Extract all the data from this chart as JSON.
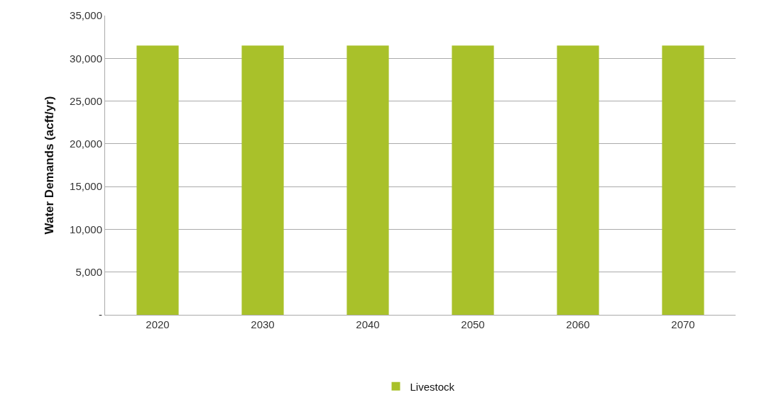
{
  "chart_data": {
    "type": "bar",
    "ylabel": "Water Demands (acft/yr)",
    "categories": [
      "2020",
      "2030",
      "2040",
      "2050",
      "2060",
      "2070"
    ],
    "series": [
      {
        "name": "Livestock",
        "color": "#a9c12a",
        "values": [
          31500,
          31500,
          31500,
          31500,
          31500,
          31500
        ]
      }
    ],
    "ylim": [
      0,
      35000
    ],
    "yticks": [
      {
        "value": 0,
        "label": "-"
      },
      {
        "value": 5000,
        "label": "5,000"
      },
      {
        "value": 10000,
        "label": "10,000"
      },
      {
        "value": 15000,
        "label": "15,000"
      },
      {
        "value": 20000,
        "label": "20,000"
      },
      {
        "value": 25000,
        "label": "25,000"
      },
      {
        "value": 30000,
        "label": "30,000"
      },
      {
        "value": 35000,
        "label": "35,000"
      }
    ],
    "grid": "y",
    "legend": "bottom"
  }
}
